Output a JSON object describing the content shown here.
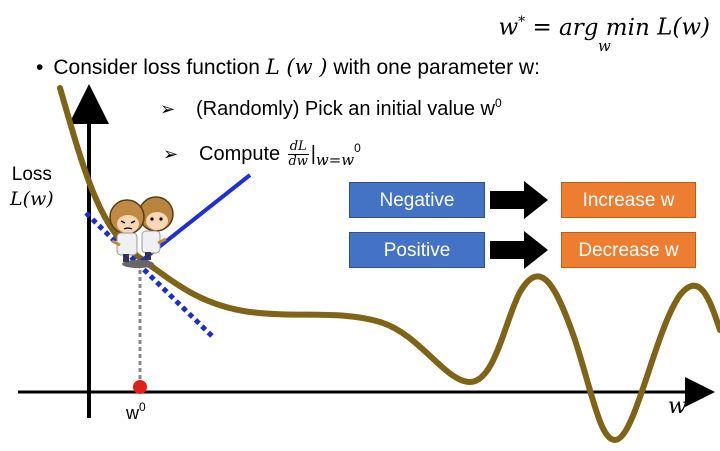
{
  "formula": {
    "lhs": "w",
    "star": "*",
    "equals": "=",
    "argmin": "arg min",
    "under": "w",
    "rhs": "L(w)"
  },
  "bullet": {
    "dot": "•",
    "text_before": "Consider loss function ",
    "func": "L (w )",
    "text_after": " with one parameter w:"
  },
  "steps": [
    {
      "arrow": "➢",
      "text": "(Randomly) Pick an initial value w",
      "sup": "0"
    },
    {
      "arrow": "➢",
      "text": "Compute ",
      "frac_num": "dL",
      "frac_den": "dw",
      "bar": "|",
      "eval": "w=w",
      "eval_sup": "0"
    }
  ],
  "y_axis_label": {
    "line1": "Loss",
    "line2": "L(w)"
  },
  "x_axis_label": "w",
  "initial_point_label": {
    "text": "w",
    "sup": "0"
  },
  "rules": [
    {
      "condition": "Negative",
      "action": "Increase w"
    },
    {
      "condition": "Positive",
      "action": "Decrease w"
    }
  ],
  "colors": {
    "curve": "#7f6316",
    "tangent_solid": "#1f2fd6",
    "tangent_dotted": "#1c2ec9",
    "point": "#e0201b",
    "negative_box": "#4472c4",
    "action_box": "#ed7d31"
  },
  "icons": {
    "character": "twin-character-icon",
    "arrow": "black-right-arrow-icon"
  }
}
